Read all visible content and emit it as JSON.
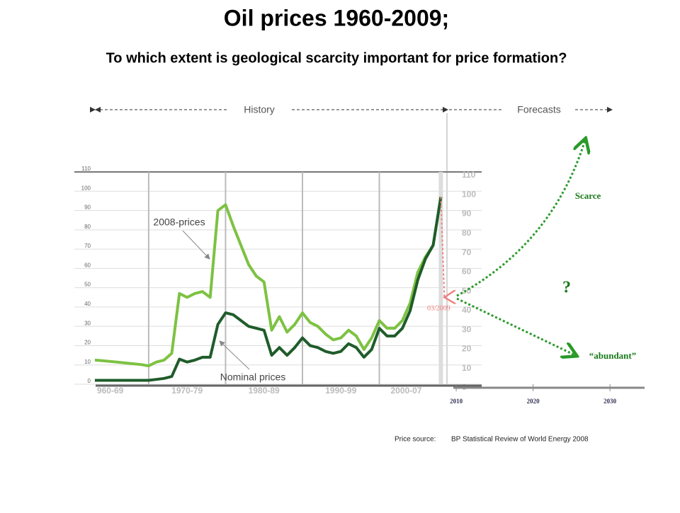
{
  "chart_data": {
    "type": "line",
    "title": "Oil prices 1960-2009;",
    "subtitle": "To which extent is geological scarcity important for price formation?",
    "history_label": "History",
    "forecast_label": "Forecasts",
    "x": [
      1963,
      1964,
      1965,
      1966,
      1967,
      1968,
      1969,
      1970,
      1971,
      1972,
      1973,
      1974,
      1975,
      1976,
      1977,
      1978,
      1979,
      1980,
      1981,
      1982,
      1983,
      1984,
      1985,
      1986,
      1987,
      1988,
      1989,
      1990,
      1991,
      1992,
      1993,
      1994,
      1995,
      1996,
      1997,
      1998,
      1999,
      2000,
      2001,
      2002,
      2003,
      2004,
      2005,
      2006,
      2007,
      2008
    ],
    "series": [
      {
        "name": "2008-prices",
        "color": "#7dc242",
        "values": [
          12.5,
          12.2,
          11.8,
          11.4,
          11,
          10.6,
          10.2,
          9.5,
          11.5,
          12.5,
          16,
          47,
          45,
          47,
          48,
          45,
          90,
          93,
          82,
          72,
          62,
          56,
          53,
          28,
          35,
          27,
          31,
          37,
          32,
          30,
          26,
          23,
          24,
          28,
          25,
          18,
          24,
          33,
          29,
          29,
          33,
          42,
          58,
          66,
          72,
          97
        ]
      },
      {
        "name": "Nominal prices",
        "color": "#1f5c2a",
        "values": [
          2,
          2,
          2,
          2,
          2,
          2,
          2,
          2,
          2.5,
          3,
          4,
          13,
          11.5,
          12.5,
          14,
          14,
          31,
          37,
          36,
          33,
          30,
          29,
          28,
          15,
          19,
          15,
          19,
          24,
          20,
          19,
          17,
          16,
          17,
          21,
          19,
          14,
          18,
          29,
          25,
          25,
          29,
          38,
          54,
          65,
          72,
          97
        ]
      }
    ],
    "xlim": [
      1963.1,
      2034.5
    ],
    "xticks": [
      {
        "value": 1965,
        "label": "960-69"
      },
      {
        "value": 1975,
        "label": "1970-79"
      },
      {
        "value": 1985,
        "label": "1980-89"
      },
      {
        "value": 1995,
        "label": "1990-99"
      },
      {
        "value": 2003.5,
        "label": "2000-07"
      }
    ],
    "xgrid": [
      1970,
      1980,
      1990,
      2000,
      2008
    ],
    "forecast_ticks": [
      2010,
      2020,
      2030
    ],
    "ylim": [
      0,
      110
    ],
    "yticks": [
      0,
      10,
      20,
      30,
      40,
      50,
      60,
      70,
      80,
      90,
      100,
      110
    ],
    "grid": true,
    "march_2009": {
      "label": "03/2009",
      "value": 45
    },
    "scenarios": {
      "scarce": "Scarce",
      "unknown": "?",
      "abundant": "“abundant”"
    },
    "source_label": "Price source:",
    "source": "BP Statistical Review of World Energy 2008"
  }
}
